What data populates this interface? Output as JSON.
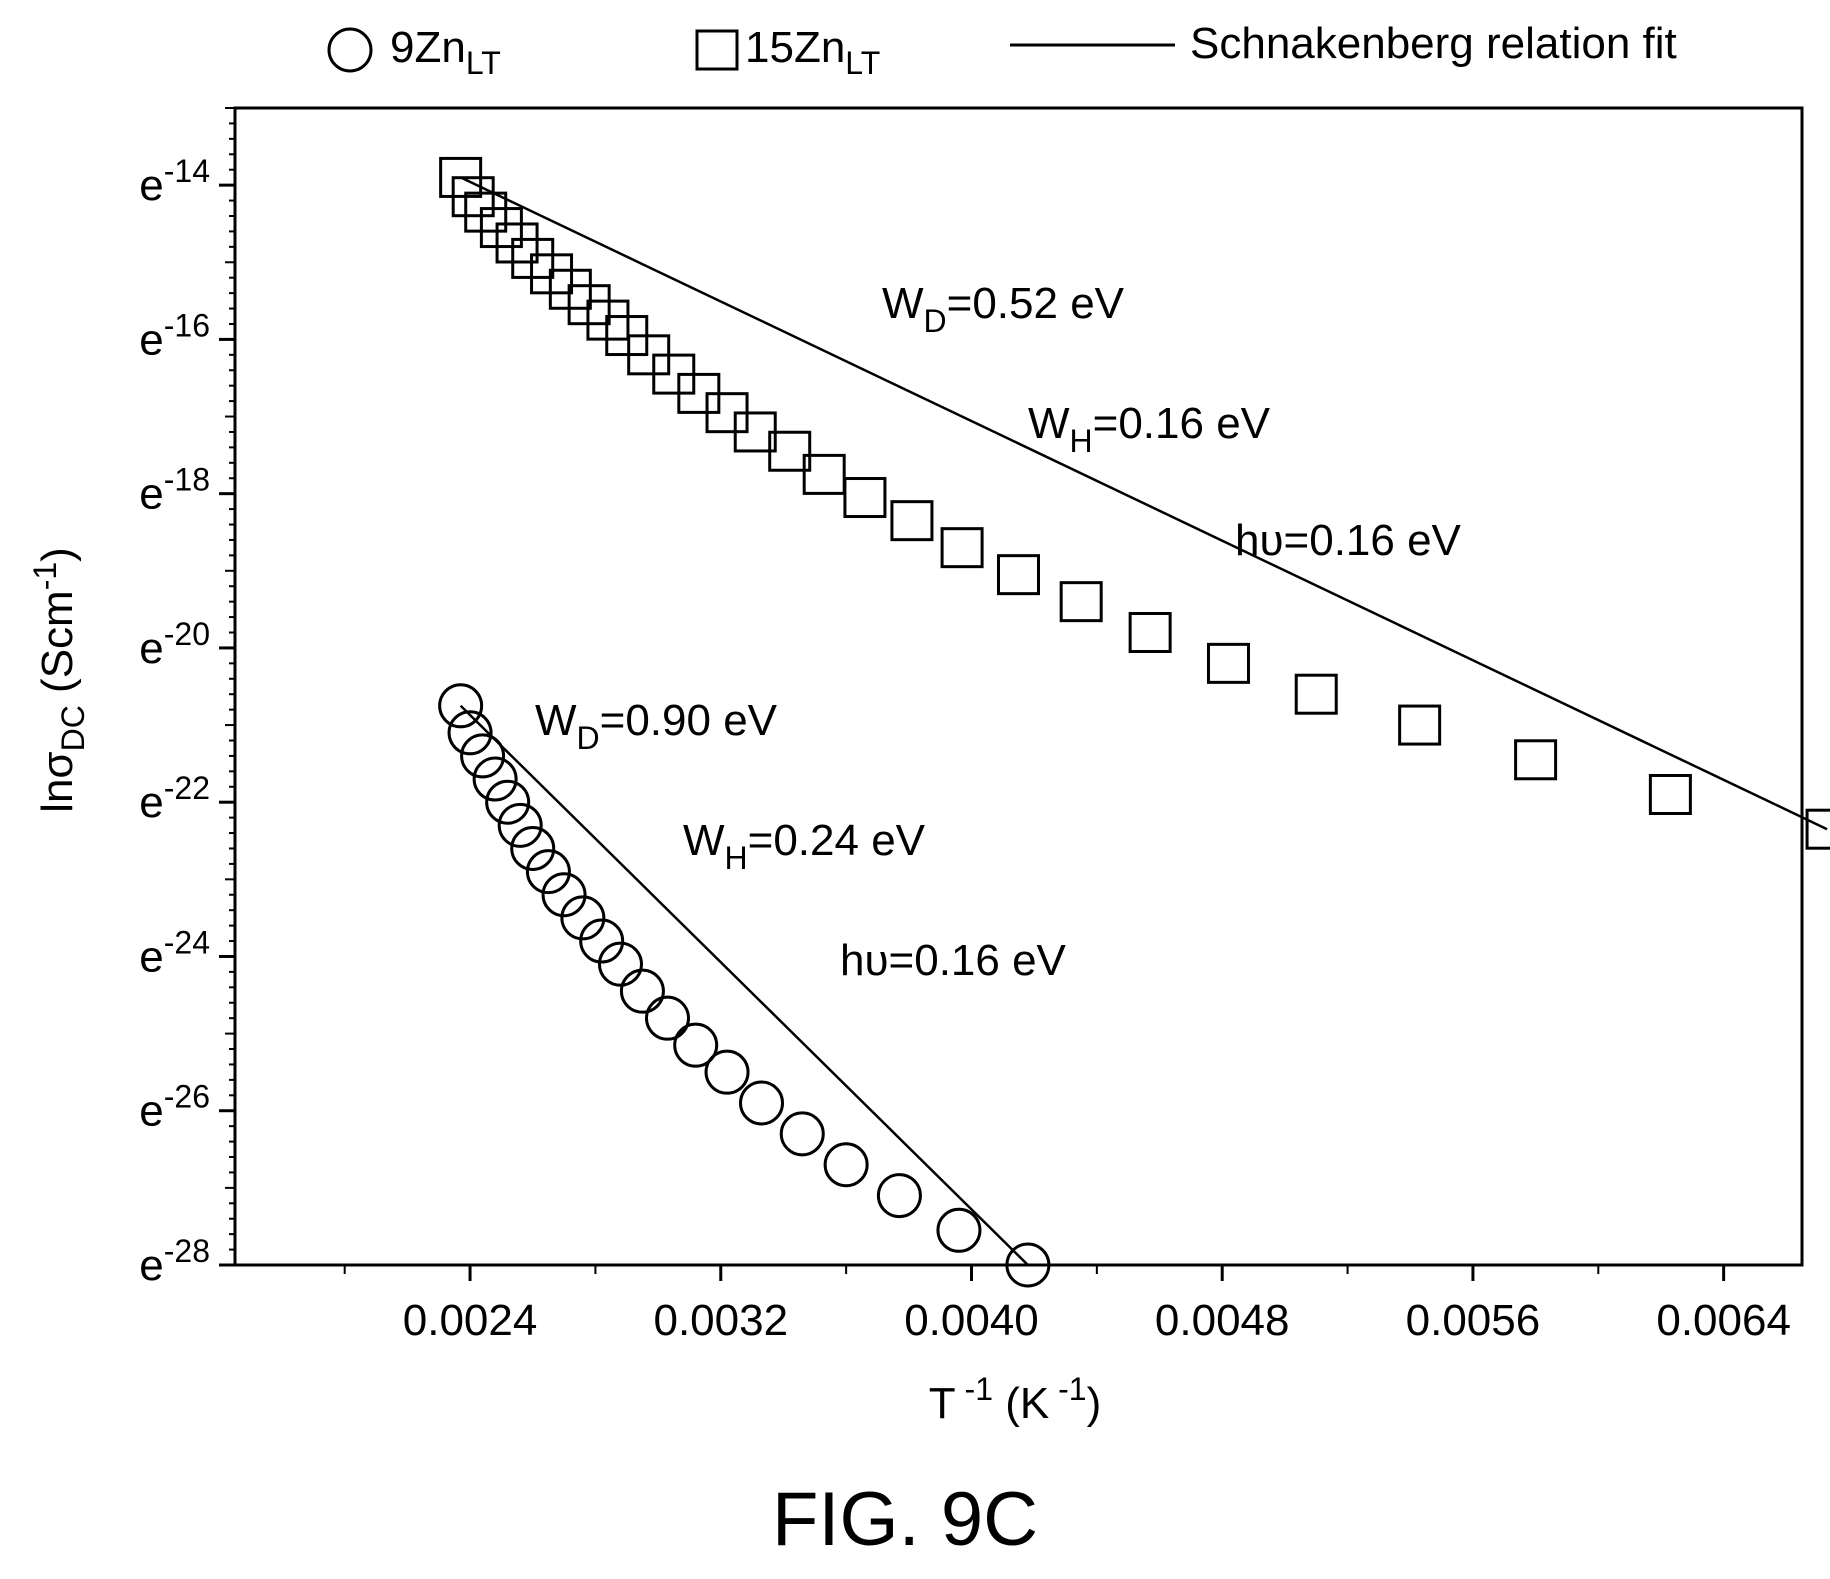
{
  "legend": {
    "items": [
      {
        "base": "9Zn",
        "sub": "LT",
        "marker": "circle"
      },
      {
        "base": "15Zn",
        "sub": "LT",
        "marker": "square"
      },
      {
        "text": "Schnakenberg relation fit",
        "marker": "line"
      }
    ]
  },
  "axes": {
    "ylabel": {
      "base": "lnσ",
      "sub": "DC",
      "unit_base": " (Scm",
      "unit_sup": "-1",
      "unit_close": ")"
    },
    "xlabel": {
      "t": "T",
      "t_sup": " -1",
      "mid": " (K",
      "k_sup": " -1",
      "close": ")"
    }
  },
  "annotations": [
    {
      "base": "W",
      "sub": "D",
      "rest": "=0.52 eV"
    },
    {
      "base": "W",
      "sub": "H",
      "rest": "=0.16 eV"
    },
    {
      "text": "hυ=0.16 eV"
    },
    {
      "base": "W",
      "sub": "D",
      "rest": "=0.90 eV"
    },
    {
      "base": "W",
      "sub": "H",
      "rest": "=0.24 eV"
    },
    {
      "text": "hυ=0.16 eV"
    }
  ],
  "figure_label": "FIG. 9C",
  "chart_data": {
    "type": "scatter",
    "x_scale": "linear",
    "y_scale": "natural-log",
    "xlim": [
      0.00165,
      0.00665
    ],
    "ylim": [
      -28,
      -13
    ],
    "x_ticks": [
      0.0024,
      0.0032,
      0.004,
      0.0048,
      0.0056,
      0.0064
    ],
    "x_tick_labels": [
      "0.0024",
      "0.0032",
      "0.0040",
      "0.0048",
      "0.0056",
      "0.0064"
    ],
    "y_ticks": [
      -14,
      -16,
      -18,
      -20,
      -22,
      -24,
      -26,
      -28
    ],
    "y_tick_labels": [
      {
        "base": "e",
        "exp": "-14"
      },
      {
        "base": "e",
        "exp": "-16"
      },
      {
        "base": "e",
        "exp": "-18"
      },
      {
        "base": "e",
        "exp": "-20"
      },
      {
        "base": "e",
        "exp": "-22"
      },
      {
        "base": "e",
        "exp": "-24"
      },
      {
        "base": "e",
        "exp": "-26"
      },
      {
        "base": "e",
        "exp": "-28"
      }
    ],
    "series": [
      {
        "name": "15Zn_LT",
        "marker": "square",
        "x": [
          0.00237,
          0.00241,
          0.00245,
          0.0025,
          0.00255,
          0.0026,
          0.00266,
          0.00272,
          0.00278,
          0.00284,
          0.0029,
          0.00297,
          0.00305,
          0.00313,
          0.00322,
          0.00331,
          0.00342,
          0.00353,
          0.00366,
          0.00381,
          0.00397,
          0.00415,
          0.00435,
          0.00457,
          0.00482,
          0.0051,
          0.00543,
          0.0058,
          0.00623,
          0.00673
        ],
        "y": [
          -13.9,
          -14.15,
          -14.35,
          -14.55,
          -14.75,
          -14.95,
          -15.15,
          -15.35,
          -15.55,
          -15.75,
          -15.95,
          -16.2,
          -16.45,
          -16.7,
          -16.95,
          -17.2,
          -17.45,
          -17.75,
          -18.05,
          -18.35,
          -18.7,
          -19.05,
          -19.4,
          -19.8,
          -20.2,
          -20.6,
          -21.0,
          -21.45,
          -21.9,
          -22.35
        ]
      },
      {
        "name": "9Zn_LT",
        "marker": "circle",
        "x": [
          0.00237,
          0.0024,
          0.00244,
          0.00248,
          0.00252,
          0.00256,
          0.0026,
          0.00265,
          0.0027,
          0.00276,
          0.00282,
          0.00288,
          0.00295,
          0.00303,
          0.00312,
          0.00322,
          0.00333,
          0.00346,
          0.0036,
          0.00377,
          0.00396,
          0.00418
        ],
        "y": [
          -20.75,
          -21.1,
          -21.4,
          -21.7,
          -22.0,
          -22.3,
          -22.6,
          -22.9,
          -23.2,
          -23.5,
          -23.8,
          -24.1,
          -24.45,
          -24.8,
          -25.15,
          -25.5,
          -25.9,
          -26.3,
          -26.7,
          -27.1,
          -27.55,
          -28.0
        ]
      }
    ],
    "fits": [
      {
        "for": "15Zn_LT",
        "x": [
          0.00237,
          0.00673
        ],
        "y": [
          -13.9,
          -22.35
        ]
      },
      {
        "for": "9Zn_LT",
        "x": [
          0.00237,
          0.00418
        ],
        "y": [
          -20.75,
          -28.0
        ]
      }
    ]
  }
}
